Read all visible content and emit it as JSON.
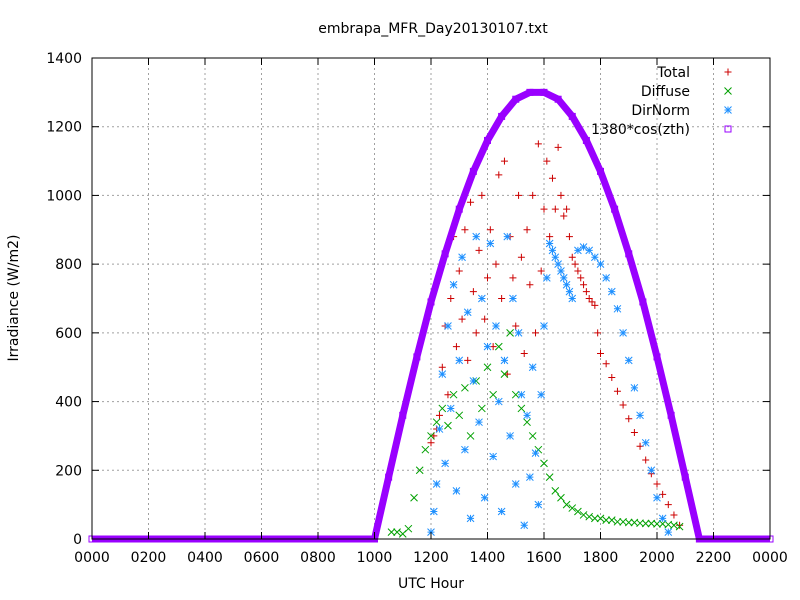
{
  "chart_data": {
    "type": "scatter",
    "title": "embrapa_MFR_Day20130107.txt",
    "xlabel": "UTC Hour",
    "ylabel": "Irradiance (W/m2)",
    "xlim": [
      0,
      24
    ],
    "ylim": [
      0,
      1400
    ],
    "x_tick_labels": [
      "0000",
      "0200",
      "0400",
      "0600",
      "0800",
      "1000",
      "1200",
      "1400",
      "1600",
      "1800",
      "2000",
      "2200",
      "0000"
    ],
    "y_tick_labels": [
      "0",
      "200",
      "400",
      "600",
      "800",
      "1000",
      "1200",
      "1400"
    ],
    "grid": true,
    "legend_position": "top-right",
    "series": [
      {
        "name": "Total",
        "marker": "+",
        "color": "#cc0000",
        "points": [
          [
            12.0,
            280
          ],
          [
            12.1,
            300
          ],
          [
            12.2,
            320
          ],
          [
            12.3,
            360
          ],
          [
            12.4,
            500
          ],
          [
            12.5,
            620
          ],
          [
            12.6,
            420
          ],
          [
            12.7,
            700
          ],
          [
            12.8,
            880
          ],
          [
            12.9,
            560
          ],
          [
            13.0,
            780
          ],
          [
            13.1,
            640
          ],
          [
            13.2,
            900
          ],
          [
            13.3,
            520
          ],
          [
            13.4,
            980
          ],
          [
            13.5,
            720
          ],
          [
            13.6,
            600
          ],
          [
            13.7,
            840
          ],
          [
            13.8,
            1000
          ],
          [
            13.9,
            640
          ],
          [
            14.0,
            760
          ],
          [
            14.1,
            900
          ],
          [
            14.2,
            560
          ],
          [
            14.3,
            800
          ],
          [
            14.4,
            1060
          ],
          [
            14.5,
            700
          ],
          [
            14.6,
            1100
          ],
          [
            14.7,
            480
          ],
          [
            14.8,
            880
          ],
          [
            14.9,
            760
          ],
          [
            15.0,
            620
          ],
          [
            15.1,
            1000
          ],
          [
            15.2,
            820
          ],
          [
            15.3,
            540
          ],
          [
            15.4,
            900
          ],
          [
            15.5,
            740
          ],
          [
            15.6,
            1000
          ],
          [
            15.7,
            600
          ],
          [
            15.8,
            1150
          ],
          [
            15.9,
            780
          ],
          [
            16.0,
            960
          ],
          [
            16.1,
            1100
          ],
          [
            16.2,
            880
          ],
          [
            16.3,
            1050
          ],
          [
            16.4,
            960
          ],
          [
            16.5,
            1140
          ],
          [
            16.6,
            1000
          ],
          [
            16.7,
            940
          ],
          [
            16.8,
            960
          ],
          [
            16.9,
            880
          ],
          [
            17.0,
            820
          ],
          [
            17.1,
            800
          ],
          [
            17.2,
            780
          ],
          [
            17.3,
            760
          ],
          [
            17.4,
            740
          ],
          [
            17.5,
            720
          ],
          [
            17.6,
            700
          ],
          [
            17.7,
            690
          ],
          [
            17.8,
            680
          ],
          [
            17.9,
            600
          ],
          [
            18.0,
            540
          ],
          [
            18.2,
            510
          ],
          [
            18.4,
            470
          ],
          [
            18.6,
            430
          ],
          [
            18.8,
            390
          ],
          [
            19.0,
            350
          ],
          [
            19.2,
            310
          ],
          [
            19.4,
            270
          ],
          [
            19.6,
            230
          ],
          [
            19.8,
            190
          ],
          [
            20.0,
            160
          ],
          [
            20.2,
            130
          ],
          [
            20.4,
            100
          ],
          [
            20.6,
            70
          ],
          [
            20.8,
            40
          ]
        ]
      },
      {
        "name": "Diffuse",
        "marker": "x",
        "color": "#00a000",
        "points": [
          [
            10.6,
            20
          ],
          [
            10.8,
            20
          ],
          [
            11.0,
            15
          ],
          [
            11.2,
            30
          ],
          [
            11.4,
            120
          ],
          [
            11.6,
            200
          ],
          [
            11.8,
            260
          ],
          [
            12.0,
            300
          ],
          [
            12.2,
            340
          ],
          [
            12.4,
            380
          ],
          [
            12.6,
            330
          ],
          [
            12.8,
            420
          ],
          [
            13.0,
            360
          ],
          [
            13.2,
            440
          ],
          [
            13.4,
            300
          ],
          [
            13.6,
            460
          ],
          [
            13.8,
            380
          ],
          [
            14.0,
            500
          ],
          [
            14.2,
            420
          ],
          [
            14.4,
            560
          ],
          [
            14.6,
            480
          ],
          [
            14.8,
            600
          ],
          [
            15.0,
            420
          ],
          [
            15.2,
            380
          ],
          [
            15.4,
            340
          ],
          [
            15.6,
            300
          ],
          [
            15.8,
            260
          ],
          [
            16.0,
            220
          ],
          [
            16.2,
            180
          ],
          [
            16.4,
            140
          ],
          [
            16.6,
            120
          ],
          [
            16.8,
            100
          ],
          [
            17.0,
            90
          ],
          [
            17.2,
            80
          ],
          [
            17.4,
            70
          ],
          [
            17.6,
            65
          ],
          [
            17.8,
            60
          ],
          [
            18.0,
            60
          ],
          [
            18.2,
            55
          ],
          [
            18.4,
            55
          ],
          [
            18.6,
            50
          ],
          [
            18.8,
            50
          ],
          [
            19.0,
            48
          ],
          [
            19.2,
            48
          ],
          [
            19.4,
            46
          ],
          [
            19.6,
            45
          ],
          [
            19.8,
            45
          ],
          [
            20.0,
            44
          ],
          [
            20.2,
            44
          ],
          [
            20.4,
            42
          ],
          [
            20.6,
            40
          ],
          [
            20.8,
            36
          ]
        ]
      },
      {
        "name": "DirNorm",
        "marker": "*",
        "color": "#1e90ff",
        "points": [
          [
            12.0,
            20
          ],
          [
            12.1,
            80
          ],
          [
            12.2,
            160
          ],
          [
            12.3,
            320
          ],
          [
            12.4,
            480
          ],
          [
            12.5,
            220
          ],
          [
            12.6,
            620
          ],
          [
            12.7,
            380
          ],
          [
            12.8,
            740
          ],
          [
            12.9,
            140
          ],
          [
            13.0,
            520
          ],
          [
            13.1,
            820
          ],
          [
            13.2,
            260
          ],
          [
            13.3,
            660
          ],
          [
            13.4,
            60
          ],
          [
            13.5,
            460
          ],
          [
            13.6,
            880
          ],
          [
            13.7,
            340
          ],
          [
            13.8,
            700
          ],
          [
            13.9,
            120
          ],
          [
            14.0,
            560
          ],
          [
            14.1,
            860
          ],
          [
            14.2,
            240
          ],
          [
            14.3,
            620
          ],
          [
            14.4,
            400
          ],
          [
            14.5,
            80
          ],
          [
            14.6,
            520
          ],
          [
            14.7,
            880
          ],
          [
            14.8,
            300
          ],
          [
            14.9,
            700
          ],
          [
            15.0,
            160
          ],
          [
            15.1,
            600
          ],
          [
            15.2,
            420
          ],
          [
            15.3,
            40
          ],
          [
            15.4,
            360
          ],
          [
            15.5,
            180
          ],
          [
            15.6,
            500
          ],
          [
            15.7,
            250
          ],
          [
            15.8,
            100
          ],
          [
            15.9,
            420
          ],
          [
            16.0,
            620
          ],
          [
            16.1,
            760
          ],
          [
            16.2,
            860
          ],
          [
            16.3,
            840
          ],
          [
            16.4,
            820
          ],
          [
            16.5,
            800
          ],
          [
            16.6,
            780
          ],
          [
            16.7,
            760
          ],
          [
            16.8,
            740
          ],
          [
            16.9,
            720
          ],
          [
            17.0,
            700
          ],
          [
            17.2,
            840
          ],
          [
            17.4,
            850
          ],
          [
            17.6,
            840
          ],
          [
            17.8,
            820
          ],
          [
            18.0,
            800
          ],
          [
            18.2,
            760
          ],
          [
            18.4,
            720
          ],
          [
            18.6,
            670
          ],
          [
            18.8,
            600
          ],
          [
            19.0,
            520
          ],
          [
            19.2,
            440
          ],
          [
            19.4,
            360
          ],
          [
            19.6,
            280
          ],
          [
            19.8,
            200
          ],
          [
            20.0,
            120
          ],
          [
            20.2,
            60
          ],
          [
            20.4,
            20
          ]
        ]
      },
      {
        "name": "1380*cos(zth)",
        "marker": "square",
        "color": "#9900ff",
        "points": [
          [
            0,
            0
          ],
          [
            1,
            0
          ],
          [
            2,
            0
          ],
          [
            3,
            0
          ],
          [
            4,
            0
          ],
          [
            5,
            0
          ],
          [
            6,
            0
          ],
          [
            7,
            0
          ],
          [
            8,
            0
          ],
          [
            9,
            0
          ],
          [
            10.0,
            0
          ],
          [
            10.5,
            180
          ],
          [
            11.0,
            360
          ],
          [
            11.5,
            530
          ],
          [
            12.0,
            690
          ],
          [
            12.5,
            830
          ],
          [
            13.0,
            960
          ],
          [
            13.5,
            1070
          ],
          [
            14.0,
            1160
          ],
          [
            14.5,
            1230
          ],
          [
            15.0,
            1280
          ],
          [
            15.5,
            1300
          ],
          [
            16.0,
            1300
          ],
          [
            16.5,
            1280
          ],
          [
            17.0,
            1230
          ],
          [
            17.5,
            1160
          ],
          [
            18.0,
            1070
          ],
          [
            18.5,
            960
          ],
          [
            19.0,
            830
          ],
          [
            19.5,
            690
          ],
          [
            20.0,
            530
          ],
          [
            20.5,
            360
          ],
          [
            21.0,
            180
          ],
          [
            21.5,
            0
          ],
          [
            22.0,
            0
          ],
          [
            22.5,
            0
          ],
          [
            23.0,
            0
          ],
          [
            24,
            0
          ]
        ]
      }
    ]
  }
}
